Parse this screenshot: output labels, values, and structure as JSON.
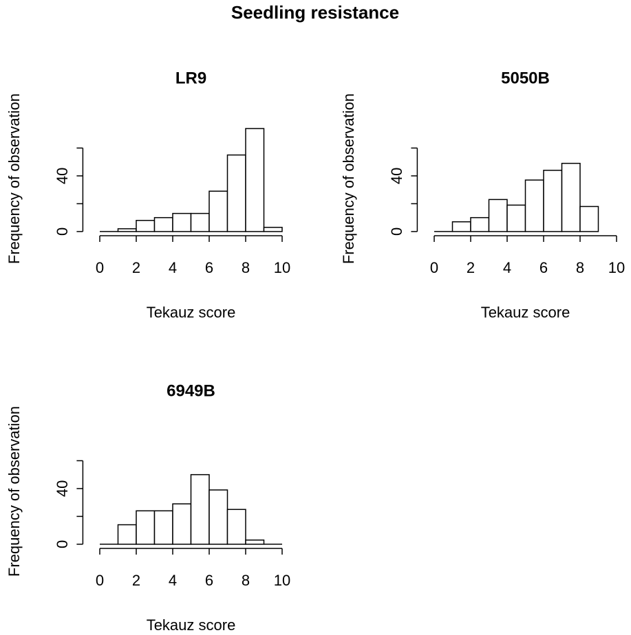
{
  "title": "Seedling resistance",
  "chart_data": [
    {
      "type": "histogram",
      "title": "LR9",
      "xlabel": "Tekauz score",
      "ylabel": "Frequency of observation",
      "bins": [
        0,
        1,
        2,
        3,
        4,
        5,
        6,
        7,
        8,
        9,
        10
      ],
      "values": [
        0,
        2,
        8,
        10,
        13,
        13,
        29,
        55,
        74,
        3
      ],
      "xlim": [
        -0.4,
        10.4
      ],
      "ylim": [
        -3,
        76
      ],
      "xticks": [
        0,
        2,
        4,
        6,
        8,
        10
      ],
      "yticks": [
        0,
        40
      ],
      "minor_yticks": [
        20,
        60
      ],
      "color": "#ffffff"
    },
    {
      "type": "histogram",
      "title": "5050B",
      "xlabel": "Tekauz score",
      "ylabel": "Frequency of observation",
      "bins": [
        0,
        1,
        2,
        3,
        4,
        5,
        6,
        7,
        8,
        9
      ],
      "values": [
        0,
        7,
        10,
        23,
        19,
        37,
        44,
        49,
        18
      ],
      "xlim": [
        -0.4,
        10.4
      ],
      "ylim": [
        -3,
        76
      ],
      "xticks": [
        0,
        2,
        4,
        6,
        8,
        10
      ],
      "yticks": [
        0,
        40
      ],
      "minor_yticks": [
        20,
        60
      ],
      "color": "#ffffff"
    },
    {
      "type": "histogram",
      "title": "6949B",
      "xlabel": "Tekauz score",
      "ylabel": "Frequency of observation",
      "bins": [
        0,
        1,
        2,
        3,
        4,
        5,
        6,
        7,
        8,
        9,
        10
      ],
      "values": [
        0,
        14,
        24,
        24,
        29,
        50,
        39,
        25,
        3,
        0
      ],
      "xlim": [
        -0.4,
        10.4
      ],
      "ylim": [
        -3,
        76
      ],
      "xticks": [
        0,
        2,
        4,
        6,
        8,
        10
      ],
      "yticks": [
        0,
        40
      ],
      "minor_yticks": [
        20,
        60
      ],
      "color": "#ffffff"
    }
  ]
}
